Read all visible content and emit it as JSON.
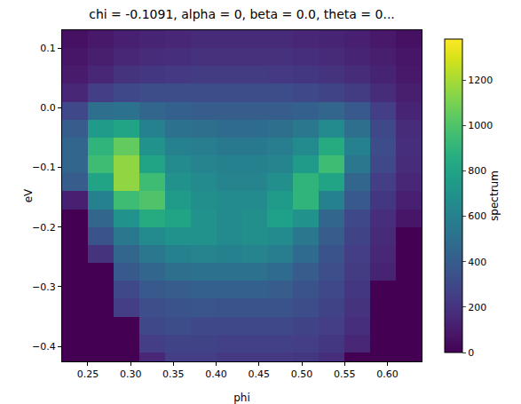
{
  "chart_data": {
    "type": "heatmap",
    "title": "chi = -0.1091, alpha = 0, beta = 0.0, theta = 0...",
    "x_label": "phi",
    "y_label": "eV",
    "colorbar_label": "spectrum",
    "color": "viridis",
    "grid": false,
    "x": [
      0.235,
      0.265,
      0.295,
      0.325,
      0.355,
      0.385,
      0.415,
      0.445,
      0.475,
      0.505,
      0.535,
      0.565,
      0.595,
      0.625
    ],
    "y": [
      0.115,
      0.085,
      0.055,
      0.025,
      -0.005,
      -0.035,
      -0.065,
      -0.095,
      -0.125,
      -0.155,
      -0.185,
      -0.215,
      -0.245,
      -0.275,
      -0.305,
      -0.335,
      -0.365,
      -0.395,
      -0.425
    ],
    "values": [
      [
        60,
        90,
        120,
        140,
        150,
        160,
        160,
        160,
        160,
        150,
        140,
        120,
        90,
        60
      ],
      [
        80,
        110,
        150,
        170,
        180,
        190,
        190,
        190,
        190,
        180,
        160,
        140,
        110,
        80
      ],
      [
        100,
        150,
        200,
        220,
        230,
        240,
        240,
        240,
        230,
        220,
        200,
        170,
        130,
        90
      ],
      [
        150,
        250,
        300,
        320,
        320,
        320,
        320,
        320,
        320,
        300,
        280,
        240,
        170,
        110
      ],
      [
        300,
        500,
        520,
        450,
        420,
        400,
        400,
        400,
        400,
        420,
        450,
        380,
        250,
        140
      ],
      [
        400,
        750,
        800,
        600,
        520,
        500,
        480,
        480,
        500,
        550,
        650,
        500,
        300,
        170
      ],
      [
        450,
        900,
        1050,
        700,
        600,
        580,
        560,
        560,
        580,
        650,
        850,
        600,
        320,
        180
      ],
      [
        450,
        950,
        1150,
        800,
        650,
        620,
        600,
        600,
        620,
        750,
        950,
        550,
        300,
        170
      ],
      [
        400,
        800,
        1150,
        950,
        700,
        650,
        620,
        620,
        680,
        900,
        800,
        450,
        250,
        150
      ],
      [
        120,
        600,
        950,
        1000,
        750,
        680,
        650,
        650,
        750,
        900,
        600,
        380,
        220,
        120
      ],
      [
        0,
        450,
        700,
        850,
        800,
        700,
        650,
        680,
        780,
        700,
        450,
        300,
        180,
        80
      ],
      [
        0,
        350,
        550,
        650,
        700,
        700,
        650,
        680,
        650,
        550,
        400,
        280,
        160,
        0
      ],
      [
        0,
        200,
        450,
        550,
        600,
        620,
        600,
        620,
        580,
        480,
        350,
        250,
        150,
        0
      ],
      [
        0,
        0,
        380,
        450,
        500,
        520,
        520,
        520,
        480,
        400,
        330,
        240,
        130,
        0
      ],
      [
        0,
        0,
        300,
        380,
        400,
        420,
        420,
        420,
        400,
        350,
        300,
        220,
        0,
        0
      ],
      [
        0,
        0,
        250,
        330,
        350,
        360,
        350,
        350,
        350,
        320,
        280,
        200,
        0,
        0
      ],
      [
        0,
        0,
        0,
        300,
        320,
        300,
        300,
        300,
        300,
        280,
        250,
        180,
        0,
        0
      ],
      [
        0,
        0,
        0,
        250,
        280,
        280,
        260,
        260,
        260,
        250,
        220,
        150,
        0,
        0
      ],
      [
        0,
        0,
        0,
        150,
        250,
        250,
        230,
        230,
        230,
        220,
        180,
        0,
        0,
        0
      ]
    ],
    "xlim": [
      0.22,
      0.64
    ],
    "ylim": [
      -0.425,
      0.13
    ],
    "xticks": [
      0.25,
      {
        "value": 0.3,
        "label": "0.30"
      },
      0.35,
      {
        "value": 0.4,
        "label": "0.40"
      },
      0.45,
      {
        "value": 0.5,
        "label": "0.50"
      },
      0.55,
      {
        "value": 0.6,
        "label": "0.60"
      }
    ],
    "yticks": [
      {
        "value": -0.4,
        "label": "−0.4"
      },
      {
        "value": -0.3,
        "label": "−0.3"
      },
      {
        "value": -0.2,
        "label": "−0.2"
      },
      {
        "value": -0.1,
        "label": "−0.1"
      },
      {
        "value": 0,
        "label": "0.0"
      },
      0.1
    ],
    "colorbar_range": [
      0,
      1380
    ],
    "colorbar_ticks": [
      0,
      200,
      400,
      600,
      800,
      1000,
      1200
    ]
  }
}
